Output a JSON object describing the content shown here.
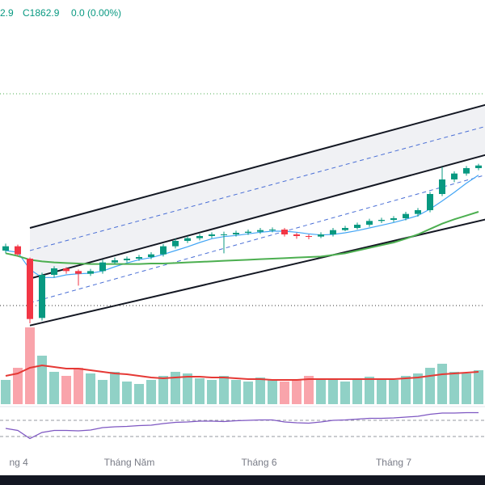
{
  "chart_data": {
    "type": "candlestick",
    "header": {
      "open_fragment": "2.9",
      "close": "C1862.9",
      "change": "0.0 (0.00%)"
    },
    "up_color": "#089981",
    "down_color": "#f23645",
    "ylim": [
      1435,
      2170
    ],
    "open": [
      1705,
      1713,
      1690,
      1580,
      1660,
      1672,
      1667,
      1662,
      1667,
      1683,
      1687,
      1690,
      1693,
      1698,
      1713,
      1723,
      1728,
      1732,
      1735,
      1735,
      1738,
      1740,
      1743,
      1744,
      1735,
      1732,
      1731,
      1735,
      1743,
      1747,
      1753,
      1760,
      1762,
      1765,
      1773,
      1780,
      1810,
      1837,
      1848,
      1858
    ],
    "high": [
      1718,
      1716,
      1692,
      1664,
      1676,
      1674,
      1670,
      1671,
      1688,
      1692,
      1694,
      1697,
      1702,
      1717,
      1727,
      1732,
      1736,
      1739,
      1740,
      1742,
      1744,
      1747,
      1748,
      1747,
      1738,
      1735,
      1739,
      1747,
      1751,
      1757,
      1764,
      1766,
      1769,
      1777,
      1784,
      1814,
      1860,
      1852,
      1862,
      1866
    ],
    "low": [
      1700,
      1695,
      1570,
      1575,
      1655,
      1662,
      1640,
      1658,
      1662,
      1680,
      1683,
      1686,
      1689,
      1694,
      1709,
      1719,
      1724,
      1728,
      1700,
      1731,
      1734,
      1736,
      1739,
      1731,
      1727,
      1726,
      1728,
      1731,
      1741,
      1744,
      1749,
      1756,
      1758,
      1761,
      1768,
      1776,
      1806,
      1832,
      1844,
      1854
    ],
    "close": [
      1713,
      1698,
      1578,
      1660,
      1672,
      1667,
      1662,
      1667,
      1683,
      1687,
      1690,
      1693,
      1698,
      1713,
      1723,
      1728,
      1732,
      1735,
      1735,
      1738,
      1740,
      1743,
      1744,
      1735,
      1732,
      1731,
      1735,
      1743,
      1747,
      1753,
      1760,
      1762,
      1765,
      1773,
      1780,
      1810,
      1837,
      1848,
      1858,
      1862.9
    ],
    "moving_averages": [
      {
        "color": "#42a5f5",
        "values": [
          1705,
          1702,
          1670,
          1655,
          1655,
          1660,
          1662,
          1663,
          1667,
          1675,
          1682,
          1688,
          1692,
          1698,
          1705,
          1712,
          1720,
          1727,
          1731,
          1733,
          1736,
          1739,
          1741,
          1741,
          1739,
          1736,
          1734,
          1735,
          1738,
          1742,
          1747,
          1752,
          1757,
          1763,
          1770,
          1782,
          1797,
          1813,
          1830,
          1845
        ]
      },
      {
        "color": "#4caf50",
        "values": [
          1700,
          1695,
          1688,
          1685,
          1683,
          1682,
          1681,
          1680,
          1680,
          1680,
          1680,
          1680,
          1681,
          1681,
          1682,
          1683,
          1684,
          1685,
          1686,
          1687,
          1688,
          1689,
          1690,
          1691,
          1692,
          1693,
          1694,
          1697,
          1700,
          1705,
          1710,
          1715,
          1720,
          1727,
          1735,
          1745,
          1755,
          1763,
          1770,
          1777
        ]
      }
    ],
    "channel": {
      "start_index": 2,
      "end_index": 40,
      "band_color": "#f0f1f4",
      "lines": [
        {
          "style": "solid",
          "values": [
            1747,
            1978
          ]
        },
        {
          "style": "dashed",
          "values": [
            1705,
            1938
          ]
        },
        {
          "style": "solid",
          "values": [
            1653,
            1885
          ]
        },
        {
          "style": "dashed",
          "values": [
            1608,
            1848
          ]
        },
        {
          "style": "solid",
          "values": [
            1566,
            1765
          ]
        }
      ]
    },
    "levels": [
      {
        "value": 1996,
        "color": "#4caf50"
      },
      {
        "value": 1603,
        "color": "#333333"
      }
    ],
    "volume": [
      30,
      45,
      95,
      60,
      40,
      35,
      45,
      38,
      30,
      40,
      28,
      25,
      30,
      35,
      40,
      38,
      32,
      30,
      35,
      30,
      28,
      33,
      30,
      28,
      30,
      35,
      32,
      30,
      28,
      30,
      34,
      32,
      30,
      35,
      38,
      45,
      50,
      40,
      38,
      42
    ],
    "volume_ma": {
      "color": "#e53935",
      "values": [
        35,
        38,
        45,
        48,
        46,
        44,
        44,
        42,
        40,
        38,
        37,
        35,
        33,
        32,
        33,
        34,
        34,
        33,
        33,
        32,
        31,
        31,
        30,
        30,
        30,
        31,
        31,
        31,
        31,
        31,
        31,
        31,
        31,
        32,
        33,
        35,
        37,
        38,
        39,
        40
      ]
    },
    "vlim": [
      0,
      110
    ],
    "rsi": {
      "color": "#7e57c2",
      "ylim": [
        0,
        100
      ],
      "bands": [
        70,
        30
      ],
      "values": [
        50,
        45,
        25,
        40,
        45,
        45,
        44,
        46,
        52,
        54,
        55,
        57,
        58,
        62,
        65,
        66,
        68,
        68,
        67,
        69,
        70,
        71,
        71,
        66,
        64,
        63,
        66,
        70,
        71,
        73,
        75,
        75,
        76,
        78,
        80,
        85,
        88,
        88,
        89,
        89
      ]
    },
    "x_labels": [
      {
        "index": 0.3,
        "label": "ng 4"
      },
      {
        "index": 10.2,
        "label": "Tháng Năm"
      },
      {
        "index": 20.9,
        "label": "Tháng 6"
      },
      {
        "index": 32,
        "label": "Tháng 7"
      }
    ]
  }
}
